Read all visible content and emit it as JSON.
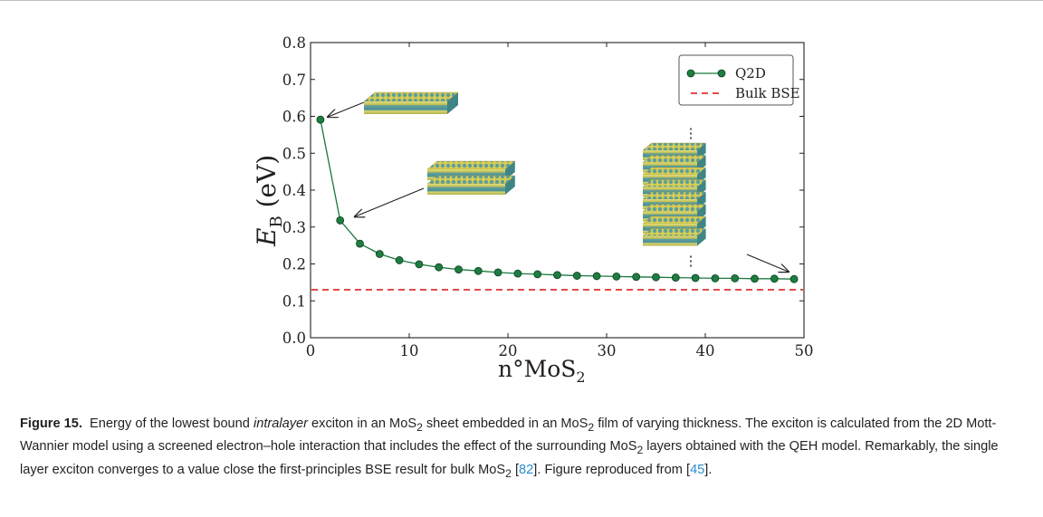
{
  "chart_data": {
    "type": "line",
    "x": [
      1,
      3,
      5,
      7,
      9,
      11,
      13,
      15,
      17,
      19,
      21,
      23,
      25,
      27,
      29,
      31,
      33,
      35,
      37,
      39,
      41,
      43,
      45,
      47,
      49
    ],
    "series": [
      {
        "name": "Q2D",
        "values": [
          0.591,
          0.318,
          0.255,
          0.227,
          0.21,
          0.199,
          0.191,
          0.185,
          0.181,
          0.177,
          0.174,
          0.172,
          0.17,
          0.168,
          0.167,
          0.166,
          0.165,
          0.164,
          0.163,
          0.162,
          0.161,
          0.161,
          0.16,
          0.16,
          0.159
        ],
        "color": "#1a7a3e",
        "marker": "circle"
      },
      {
        "name": "Bulk BSE",
        "values": [
          0.13,
          0.13
        ],
        "x": [
          0,
          50
        ],
        "color": "#e03030",
        "style": "dashed"
      }
    ],
    "xlim": [
      0,
      50
    ],
    "ylim": [
      0.0,
      0.8
    ],
    "xticks": [
      0,
      10,
      20,
      30,
      40,
      50
    ],
    "yticks": [
      0.0,
      0.1,
      0.2,
      0.3,
      0.4,
      0.5,
      0.6,
      0.7,
      0.8
    ],
    "xtick_labels": [
      "0",
      "10",
      "20",
      "30",
      "40",
      "50"
    ],
    "ytick_labels": [
      "0.0",
      "0.1",
      "0.2",
      "0.3",
      "0.4",
      "0.5",
      "0.6",
      "0.7",
      "0.8"
    ],
    "xlabel": {
      "main": "n°MoS",
      "sub": "2"
    },
    "ylabel": {
      "main": "E",
      "sub": "B",
      "unit": " (eV)"
    },
    "legend": {
      "placement": "top-right"
    },
    "annotations": [
      "monolayer",
      "bilayer",
      "multilayer"
    ],
    "ellipsis": "⋮"
  },
  "caption": {
    "label": "Figure 15.",
    "p1": "Energy of the lowest bound ",
    "em": "intralayer",
    "p2": " exciton in an MoS",
    "s1": "2",
    "p3": " sheet embedded in an MoS",
    "s2": "2",
    "p4": " film of varying thickness. The exciton is calculated from the 2D Mott-Wannier model using a screened electron–hole interaction that includes the effect of the surrounding MoS",
    "s3": "2",
    "p5": " layers obtained with the QEH model. Remarkably, the single layer exciton converges to a value close the first-principles BSE result for bulk MoS",
    "s4": "2",
    "p6": " [",
    "ref1": "82",
    "p7": "]. Figure reproduced from [",
    "ref2": "45",
    "p8": "]."
  },
  "colors": {
    "line": "#1a7a3e",
    "marker_fill": "#1e7d41",
    "bulk": "#e03030",
    "layer_s": "#e3d75a",
    "layer_mo": "#4f9a9a",
    "ref_link": "#2b8fd0"
  }
}
